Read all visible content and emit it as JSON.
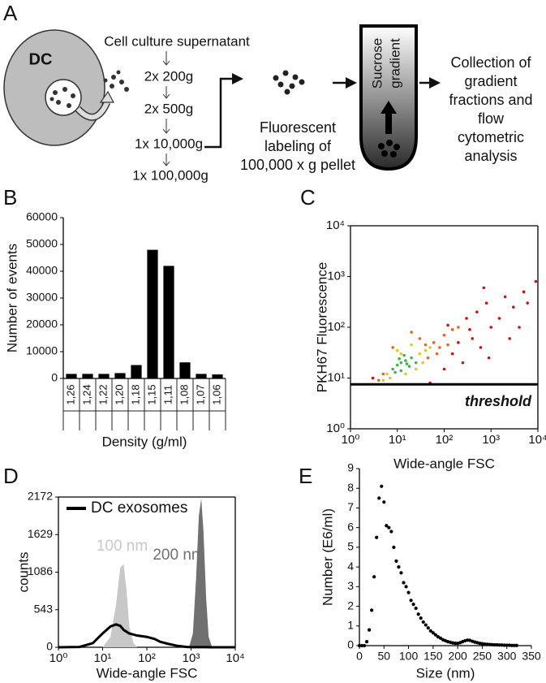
{
  "panel_labels": [
    "A",
    "B",
    "C",
    "D",
    "E"
  ],
  "diagram": {
    "cell_label": "DC",
    "steps": [
      "Cell culture supernatant",
      "2x 200g",
      "2x 500g",
      "1x 10,000g",
      "1x 100,000g"
    ],
    "labeling": [
      "Fluorescent",
      "labeling of",
      "100,000 x g pellet"
    ],
    "gradient": [
      "Sucrose",
      "gradient"
    ],
    "collection": [
      "Collection of",
      "gradient",
      "fractions and",
      "flow",
      "cytometric",
      "analysis"
    ]
  },
  "chart_data": [
    {
      "type": "bar",
      "xlabel": "Density (g/ml)",
      "ylabel": "Number of events",
      "categories": [
        "1,26",
        "1,24",
        "1,22",
        "1,20",
        "1,18",
        "1,15",
        "1,11",
        "1,08",
        "1,07",
        "1,06"
      ],
      "values": [
        1700,
        1700,
        1700,
        2000,
        5000,
        48000,
        42000,
        6000,
        1700,
        1500
      ],
      "color": "#000000",
      "ylim": [
        0,
        60000
      ],
      "yticks": [
        0,
        10000,
        20000,
        30000,
        40000,
        50000,
        60000
      ],
      "grid": false
    },
    {
      "type": "scatter",
      "xlabel": "Wide-angle FSC",
      "ylabel": "PKH67 Fluorescence",
      "xscale": "log",
      "yscale": "log",
      "xlim": [
        1,
        10000
      ],
      "ylim": [
        1,
        10000
      ],
      "xticks": [
        {
          "value": 1,
          "label": "10⁰"
        },
        {
          "value": 10,
          "label": "10¹"
        },
        {
          "value": 100,
          "label": "10²"
        },
        {
          "value": 1000,
          "label": "10³"
        },
        {
          "value": 10000,
          "label": "10⁴"
        }
      ],
      "yticks": [
        {
          "value": 1,
          "label": "10⁰"
        },
        {
          "value": 10,
          "label": "10¹"
        },
        {
          "value": 100,
          "label": "10²"
        },
        {
          "value": 1000,
          "label": "10³"
        },
        {
          "value": 10000,
          "label": "10⁴"
        }
      ],
      "threshold": 7.5,
      "threshold_label": "threshold",
      "grid": false,
      "series": [
        {
          "color": "#cc1111",
          "x": [
            3,
            200,
            300,
            500,
            800,
            1000,
            2000,
            3000,
            5000,
            9000,
            400,
            150,
            1500,
            600,
            250,
            700,
            4000,
            100,
            50,
            6000,
            2500,
            350,
            120,
            900
          ],
          "y": [
            10,
            50,
            150,
            200,
            300,
            100,
            400,
            250,
            500,
            800,
            60,
            30,
            150,
            40,
            20,
            600,
            100,
            15,
            8,
            300,
            60,
            90,
            110,
            25
          ]
        },
        {
          "color": "#e8641a",
          "x": [
            4,
            5,
            60,
            80,
            100,
            30,
            150,
            20,
            70,
            200,
            8,
            45,
            120,
            40
          ],
          "y": [
            9,
            12,
            50,
            40,
            70,
            60,
            90,
            80,
            30,
            100,
            40,
            25,
            45,
            45
          ]
        },
        {
          "color": "#e6c619",
          "x": [
            6,
            7,
            30,
            40,
            10,
            20,
            35,
            5,
            50,
            15,
            25,
            12
          ],
          "y": [
            12,
            10,
            30,
            35,
            35,
            45,
            20,
            9,
            40,
            12,
            15,
            30
          ]
        },
        {
          "color": "#3cb84a",
          "x": [
            8,
            10,
            12,
            15,
            18,
            20,
            12,
            9,
            14,
            25,
            16,
            11
          ],
          "y": [
            15,
            18,
            20,
            22,
            17,
            25,
            14,
            13,
            28,
            20,
            19,
            24
          ]
        }
      ]
    },
    {
      "type": "line",
      "xlabel": "Wide-angle FSC",
      "ylabel": "counts",
      "xscale": "log",
      "xlim": [
        1,
        10000
      ],
      "ylim": [
        0,
        2172
      ],
      "xticks": [
        {
          "value": 1,
          "label": "10⁰"
        },
        {
          "value": 10,
          "label": "10¹"
        },
        {
          "value": 100,
          "label": "10²"
        },
        {
          "value": 1000,
          "label": "10³"
        },
        {
          "value": 10000,
          "label": "10⁴"
        }
      ],
      "yticks": [
        0,
        543,
        1086,
        1629,
        2172
      ],
      "legend": "upper left",
      "grid": false,
      "series": [
        {
          "name": "100 nm",
          "kind": "area",
          "color": "#c8c8c8",
          "x": [
            10,
            15,
            20,
            25,
            30,
            35,
            40,
            50,
            60
          ],
          "values": [
            0,
            150,
            600,
            1150,
            1200,
            800,
            300,
            60,
            0
          ]
        },
        {
          "name": "200 nm",
          "kind": "area",
          "color": "#707070",
          "x": [
            900,
            1100,
            1300,
            1500,
            1700,
            1900,
            2200,
            2500,
            3000
          ],
          "values": [
            0,
            200,
            1000,
            1900,
            2150,
            1700,
            700,
            150,
            0
          ]
        },
        {
          "name": "DC exosomes",
          "kind": "line",
          "color": "#000000",
          "x": [
            1,
            3,
            6,
            10,
            15,
            20,
            25,
            30,
            40,
            60,
            100,
            150,
            200,
            300,
            500,
            800,
            1000,
            1500,
            2000,
            3000,
            5000,
            10000
          ],
          "values": [
            0,
            5,
            60,
            200,
            300,
            330,
            310,
            250,
            200,
            170,
            150,
            120,
            80,
            50,
            20,
            5,
            2,
            2,
            2,
            0,
            0,
            0
          ]
        }
      ]
    },
    {
      "type": "scatter",
      "xlabel": "Size (nm)",
      "ylabel": "Number (E6/ml)",
      "xlim": [
        0,
        350
      ],
      "ylim": [
        0,
        9
      ],
      "xticks": [
        0,
        50,
        100,
        150,
        200,
        250,
        300,
        350
      ],
      "yticks": [
        0,
        1,
        2,
        3,
        4,
        5,
        6,
        7,
        8,
        9
      ],
      "grid": false,
      "series": [
        {
          "color": "#000000",
          "x": [
            0,
            5,
            10,
            15,
            20,
            25,
            30,
            35,
            40,
            45,
            50,
            55,
            60,
            65,
            70,
            75,
            80,
            85,
            90,
            95,
            100,
            105,
            110,
            115,
            120,
            125,
            130,
            135,
            140,
            145,
            150,
            155,
            160,
            165,
            170,
            175,
            180,
            185,
            190,
            195,
            200,
            205,
            210,
            215,
            220,
            225,
            230,
            235,
            240,
            245,
            250,
            255,
            260,
            265,
            270,
            275,
            280,
            285,
            290,
            295,
            300,
            305,
            310,
            315,
            320
          ],
          "y": [
            0,
            0,
            0,
            0.2,
            0.8,
            1.8,
            3.5,
            5.5,
            7.5,
            8.1,
            7.3,
            6.1,
            6.0,
            5.8,
            5.0,
            4.3,
            4.0,
            3.7,
            3.2,
            3.0,
            2.7,
            2.3,
            2.1,
            1.9,
            1.6,
            1.4,
            1.2,
            1.05,
            0.9,
            0.75,
            0.65,
            0.55,
            0.45,
            0.38,
            0.3,
            0.25,
            0.2,
            0.17,
            0.14,
            0.12,
            0.12,
            0.15,
            0.2,
            0.25,
            0.28,
            0.27,
            0.22,
            0.18,
            0.15,
            0.12,
            0.1,
            0.08,
            0.07,
            0.06,
            0.05,
            0.04,
            0.04,
            0.03,
            0.03,
            0.02,
            0.02,
            0.02,
            0.01,
            0.01,
            0.01
          ]
        }
      ]
    }
  ]
}
